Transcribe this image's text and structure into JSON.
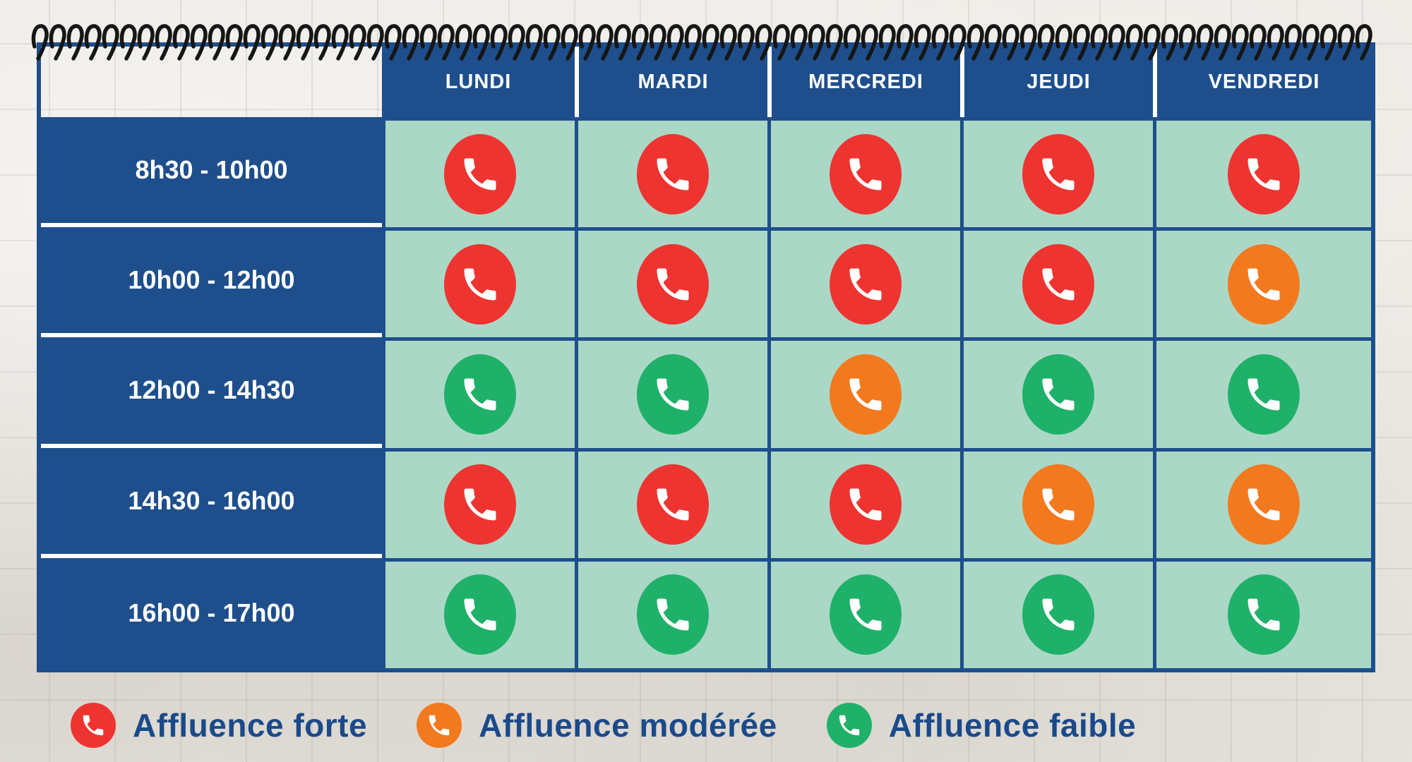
{
  "table": {
    "days": [
      "LUNDI",
      "MARDI",
      "MERCREDI",
      "JEUDI",
      "VENDREDI"
    ],
    "time_slots": [
      "8h30 - 10h00",
      "10h00 - 12h00",
      "12h00 - 14h30",
      "14h30 - 16h00",
      "16h00 - 17h00"
    ],
    "cells": [
      [
        "forte",
        "forte",
        "forte",
        "forte",
        "forte"
      ],
      [
        "forte",
        "forte",
        "forte",
        "forte",
        "moderee"
      ],
      [
        "faible",
        "faible",
        "moderee",
        "faible",
        "faible"
      ],
      [
        "forte",
        "forte",
        "forte",
        "moderee",
        "moderee"
      ],
      [
        "faible",
        "faible",
        "faible",
        "faible",
        "faible"
      ]
    ]
  },
  "legend": [
    {
      "level": "forte",
      "label": "Affluence forte"
    },
    {
      "level": "moderee",
      "label": "Affluence modérée"
    },
    {
      "level": "faible",
      "label": "Affluence faible"
    }
  ],
  "colors": {
    "forte": "#ee3430",
    "moderee": "#f3791f",
    "faible": "#1fb169",
    "table_blue": "#1e4f8c",
    "cell_mint": "#abd8c6",
    "legend_text": "#1b4a8a",
    "spiral_black": "#161616"
  },
  "icons": {
    "cell_icon": "phone-icon",
    "legend_icon": "phone-icon"
  }
}
